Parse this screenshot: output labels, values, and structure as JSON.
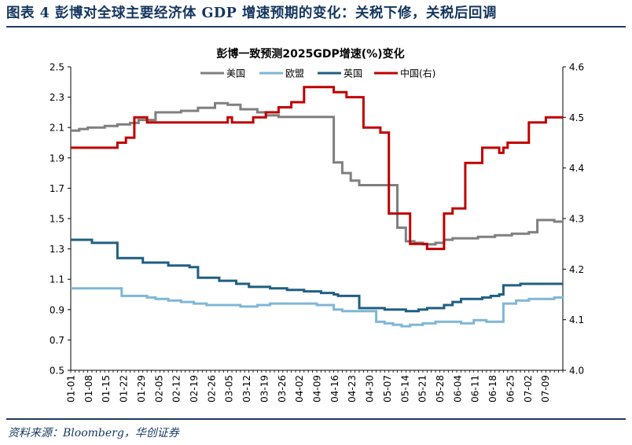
{
  "header": {
    "title": "图表 4   彭博对全球主要经济体 GDP 增速预期的变化：关税下修，关税后回调"
  },
  "footer": {
    "source": "资料来源：Bloomberg，华创证券"
  },
  "colors": {
    "header_text": "#14365e",
    "rule": "#1f3b63",
    "us": "#7f7f7f",
    "eu": "#7fb7d5",
    "uk": "#1f5f82",
    "cn": "#c00000"
  },
  "chart_data": {
    "type": "line",
    "title": "彭博一致预测2025GDP增速(%)变化",
    "legend_position": "top",
    "grid": false,
    "y_left": {
      "lim": [
        0.5,
        2.5
      ],
      "ticks": [
        "0.5",
        "0.7",
        "0.9",
        "1.1",
        "1.3",
        "1.5",
        "1.7",
        "1.9",
        "2.1",
        "2.3",
        "2.5"
      ]
    },
    "y_right": {
      "lim": [
        4.0,
        4.6
      ],
      "ticks": [
        "4.0",
        "4.1",
        "4.2",
        "4.3",
        "4.4",
        "4.5",
        "4.6"
      ]
    },
    "x_ticks": [
      "01-01",
      "01-08",
      "01-15",
      "01-22",
      "01-29",
      "02-05",
      "02-12",
      "02-19",
      "02-26",
      "03-05",
      "03-12",
      "03-19",
      "03-26",
      "04-02",
      "04-09",
      "04-16",
      "04-23",
      "04-30",
      "05-07",
      "05-14",
      "05-21",
      "05-28",
      "06-04",
      "06-11",
      "06-18",
      "06-25",
      "07-02",
      "07-09"
    ],
    "series": [
      {
        "name": "美国",
        "axis": "left",
        "color": "#7f7f7f",
        "points": [
          [
            0,
            2.08
          ],
          [
            2,
            2.09
          ],
          [
            4,
            2.1
          ],
          [
            8,
            2.11
          ],
          [
            11,
            2.12
          ],
          [
            14,
            2.13
          ],
          [
            16,
            2.15
          ],
          [
            20,
            2.2
          ],
          [
            26,
            2.21
          ],
          [
            30,
            2.23
          ],
          [
            34,
            2.26
          ],
          [
            37,
            2.25
          ],
          [
            40,
            2.22
          ],
          [
            44,
            2.2
          ],
          [
            46,
            2.18
          ],
          [
            49,
            2.17
          ],
          [
            52,
            2.17
          ],
          [
            55,
            2.17
          ],
          [
            58,
            2.17
          ],
          [
            60,
            2.17
          ],
          [
            62,
            1.87
          ],
          [
            64,
            1.8
          ],
          [
            66,
            1.75
          ],
          [
            68,
            1.72
          ],
          [
            70,
            1.72
          ],
          [
            72,
            1.72
          ],
          [
            74,
            1.72
          ],
          [
            76,
            1.72
          ],
          [
            77,
            1.44
          ],
          [
            79,
            1.35
          ],
          [
            81,
            1.34
          ],
          [
            83,
            1.33
          ],
          [
            86,
            1.34
          ],
          [
            88,
            1.36
          ],
          [
            90,
            1.37
          ],
          [
            93,
            1.37
          ],
          [
            96,
            1.38
          ],
          [
            100,
            1.39
          ],
          [
            104,
            1.4
          ],
          [
            108,
            1.41
          ],
          [
            110,
            1.49
          ],
          [
            114,
            1.48
          ],
          [
            116,
            1.48
          ]
        ]
      },
      {
        "name": "欧盟",
        "axis": "left",
        "color": "#7fb7d5",
        "points": [
          [
            0,
            1.04
          ],
          [
            4,
            1.04
          ],
          [
            8,
            1.04
          ],
          [
            11,
            1.04
          ],
          [
            12,
            0.99
          ],
          [
            15,
            0.99
          ],
          [
            18,
            0.98
          ],
          [
            20,
            0.97
          ],
          [
            23,
            0.96
          ],
          [
            26,
            0.95
          ],
          [
            29,
            0.94
          ],
          [
            32,
            0.93
          ],
          [
            35,
            0.93
          ],
          [
            37,
            0.93
          ],
          [
            40,
            0.92
          ],
          [
            44,
            0.93
          ],
          [
            47,
            0.94
          ],
          [
            50,
            0.94
          ],
          [
            53,
            0.94
          ],
          [
            56,
            0.94
          ],
          [
            58,
            0.93
          ],
          [
            60,
            0.93
          ],
          [
            62,
            0.9
          ],
          [
            64,
            0.89
          ],
          [
            66,
            0.89
          ],
          [
            68,
            0.89
          ],
          [
            70,
            0.89
          ],
          [
            72,
            0.82
          ],
          [
            74,
            0.81
          ],
          [
            76,
            0.8
          ],
          [
            78,
            0.79
          ],
          [
            80,
            0.8
          ],
          [
            83,
            0.81
          ],
          [
            86,
            0.82
          ],
          [
            89,
            0.82
          ],
          [
            92,
            0.81
          ],
          [
            95,
            0.83
          ],
          [
            98,
            0.82
          ],
          [
            101,
            0.82
          ],
          [
            102,
            0.94
          ],
          [
            105,
            0.96
          ],
          [
            108,
            0.97
          ],
          [
            111,
            0.97
          ],
          [
            114,
            0.98
          ],
          [
            116,
            0.99
          ]
        ]
      },
      {
        "name": "英国",
        "axis": "left",
        "color": "#1f5f82",
        "points": [
          [
            0,
            1.36
          ],
          [
            4,
            1.36
          ],
          [
            5,
            1.34
          ],
          [
            10,
            1.34
          ],
          [
            11,
            1.24
          ],
          [
            15,
            1.24
          ],
          [
            17,
            1.21
          ],
          [
            21,
            1.21
          ],
          [
            23,
            1.19
          ],
          [
            26,
            1.19
          ],
          [
            28,
            1.18
          ],
          [
            29,
            1.18
          ],
          [
            30,
            1.11
          ],
          [
            33,
            1.11
          ],
          [
            35,
            1.09
          ],
          [
            37,
            1.09
          ],
          [
            39,
            1.07
          ],
          [
            41,
            1.07
          ],
          [
            42,
            1.05
          ],
          [
            45,
            1.05
          ],
          [
            47,
            1.04
          ],
          [
            50,
            1.04
          ],
          [
            51,
            1.03
          ],
          [
            53,
            1.03
          ],
          [
            55,
            1.02
          ],
          [
            57,
            1.02
          ],
          [
            59,
            1.01
          ],
          [
            62,
            1.0
          ],
          [
            63,
            0.99
          ],
          [
            67,
            0.99
          ],
          [
            68,
            0.91
          ],
          [
            72,
            0.91
          ],
          [
            74,
            0.9
          ],
          [
            76,
            0.9
          ],
          [
            79,
            0.89
          ],
          [
            82,
            0.9
          ],
          [
            84,
            0.91
          ],
          [
            86,
            0.91
          ],
          [
            88,
            0.93
          ],
          [
            90,
            0.95
          ],
          [
            92,
            0.97
          ],
          [
            95,
            0.97
          ],
          [
            97,
            0.98
          ],
          [
            99,
            0.99
          ],
          [
            101,
            1.0
          ],
          [
            102,
            1.06
          ],
          [
            105,
            1.06
          ],
          [
            106,
            1.07
          ],
          [
            109,
            1.07
          ],
          [
            112,
            1.07
          ],
          [
            116,
            1.07
          ]
        ]
      },
      {
        "name": "中国(右)",
        "axis": "right",
        "color": "#c00000",
        "points": [
          [
            0,
            4.44
          ],
          [
            6,
            4.44
          ],
          [
            10,
            4.44
          ],
          [
            11,
            4.45
          ],
          [
            13,
            4.46
          ],
          [
            15,
            4.46
          ],
          [
            15,
            4.5
          ],
          [
            18,
            4.5
          ],
          [
            18,
            4.49
          ],
          [
            22,
            4.49
          ],
          [
            28,
            4.49
          ],
          [
            34,
            4.49
          ],
          [
            36,
            4.49
          ],
          [
            37,
            4.5
          ],
          [
            38,
            4.49
          ],
          [
            42,
            4.49
          ],
          [
            43,
            4.5
          ],
          [
            45,
            4.5
          ],
          [
            46,
            4.51
          ],
          [
            48,
            4.51
          ],
          [
            49,
            4.52
          ],
          [
            51,
            4.52
          ],
          [
            52,
            4.53
          ],
          [
            54,
            4.53
          ],
          [
            55,
            4.56
          ],
          [
            58,
            4.56
          ],
          [
            61,
            4.56
          ],
          [
            62,
            4.55
          ],
          [
            64,
            4.55
          ],
          [
            65,
            4.54
          ],
          [
            68,
            4.54
          ],
          [
            69,
            4.48
          ],
          [
            72,
            4.48
          ],
          [
            73,
            4.47
          ],
          [
            74,
            4.47
          ],
          [
            75,
            4.31
          ],
          [
            77,
            4.31
          ],
          [
            79,
            4.31
          ],
          [
            80,
            4.25
          ],
          [
            83,
            4.25
          ],
          [
            84,
            4.24
          ],
          [
            87,
            4.24
          ],
          [
            88,
            4.31
          ],
          [
            89,
            4.31
          ],
          [
            90,
            4.32
          ],
          [
            92,
            4.32
          ],
          [
            93,
            4.41
          ],
          [
            96,
            4.41
          ],
          [
            97,
            4.44
          ],
          [
            100,
            4.44
          ],
          [
            101,
            4.43
          ],
          [
            102,
            4.44
          ],
          [
            103,
            4.45
          ],
          [
            107,
            4.45
          ],
          [
            108,
            4.49
          ],
          [
            111,
            4.49
          ],
          [
            112,
            4.5
          ],
          [
            116,
            4.5
          ]
        ]
      }
    ]
  }
}
